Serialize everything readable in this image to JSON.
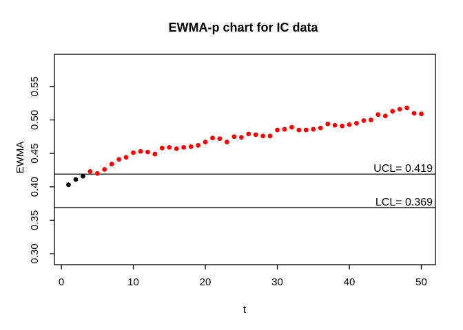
{
  "chart_data": {
    "type": "scatter",
    "title": "EWMA-p chart for IC data",
    "xlabel": "t",
    "ylabel": "EWMA",
    "grid": false,
    "legend": "none",
    "xlim": [
      -0.96,
      51.96
    ],
    "ylim": [
      0.2836,
      0.5981
    ],
    "x_ticks": [
      {
        "value": 0,
        "label": "0"
      },
      {
        "value": 10,
        "label": "10"
      },
      {
        "value": 20,
        "label": "20"
      },
      {
        "value": 30,
        "label": "30"
      },
      {
        "value": 40,
        "label": "40"
      },
      {
        "value": 50,
        "label": "50"
      }
    ],
    "y_ticks": [
      {
        "value": 0.3,
        "label": "0.30"
      },
      {
        "value": 0.35,
        "label": "0.35"
      },
      {
        "value": 0.4,
        "label": "0.40"
      },
      {
        "value": 0.45,
        "label": "0.45"
      },
      {
        "value": 0.5,
        "label": "0.50"
      },
      {
        "value": 0.55,
        "label": "0.55"
      }
    ],
    "control_limits": {
      "ucl": {
        "value": 0.419,
        "label": "UCL= 0.419"
      },
      "lcl": {
        "value": 0.369,
        "label": "LCL= 0.369"
      }
    },
    "line_color": "#000000",
    "series": [
      {
        "name": "ewma-start-points",
        "color": "#000000",
        "x": [
          1,
          2,
          3
        ],
        "y": [
          0.403,
          0.411,
          0.416
        ]
      },
      {
        "name": "ewma-monitoring-points",
        "color": "#FF0000",
        "x": [
          4,
          5,
          6,
          7,
          8,
          9,
          10,
          11,
          12,
          13,
          14,
          15,
          16,
          17,
          18,
          19,
          20,
          21,
          22,
          23,
          24,
          25,
          26,
          27,
          28,
          29,
          30,
          31,
          32,
          33,
          34,
          35,
          36,
          37,
          38,
          39,
          40,
          41,
          42,
          43,
          44,
          45,
          46,
          47,
          48,
          49,
          50
        ],
        "y": [
          0.423,
          0.42,
          0.426,
          0.434,
          0.441,
          0.444,
          0.451,
          0.453,
          0.452,
          0.449,
          0.458,
          0.459,
          0.457,
          0.459,
          0.46,
          0.462,
          0.467,
          0.473,
          0.472,
          0.467,
          0.475,
          0.474,
          0.479,
          0.478,
          0.476,
          0.476,
          0.485,
          0.486,
          0.489,
          0.485,
          0.485,
          0.486,
          0.488,
          0.494,
          0.492,
          0.491,
          0.493,
          0.495,
          0.499,
          0.5,
          0.508,
          0.506,
          0.513,
          0.516,
          0.518,
          0.51,
          0.509
        ]
      }
    ]
  }
}
